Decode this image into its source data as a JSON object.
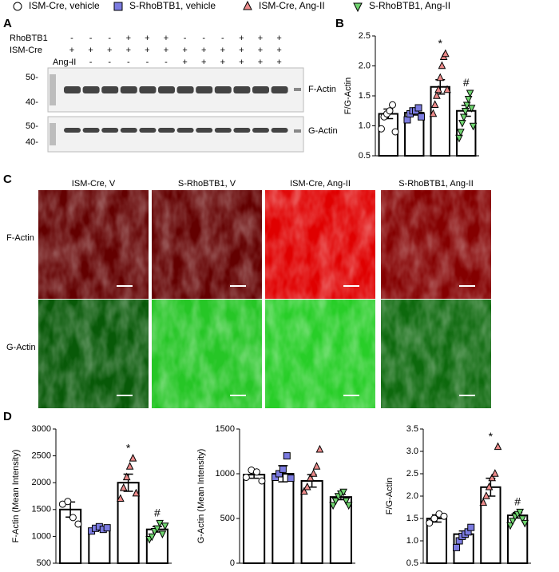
{
  "legend": [
    {
      "name": "ISM-Cre, vehicle",
      "color": "#ffffff",
      "marker": "circle"
    },
    {
      "name": "S-RhoBTB1, vehicle",
      "color": "#7b7be0",
      "marker": "square"
    },
    {
      "name": "ISM-Cre, Ang-II",
      "color": "#ec8a8a",
      "marker": "triangle-up"
    },
    {
      "name": "S-RhoBTB1, Ang-II",
      "color": "#6fd46f",
      "marker": "triangle-down"
    }
  ],
  "panels": [
    "A",
    "B",
    "C",
    "D"
  ],
  "blot": {
    "rows": [
      {
        "name": "RhoBTB1",
        "signs": [
          "-",
          "-",
          "-",
          "+",
          "+",
          "+",
          "-",
          "-",
          "-",
          "+",
          "+",
          "+"
        ]
      },
      {
        "name": "ISM-Cre",
        "signs": [
          "+",
          "+",
          "+",
          "+",
          "+",
          "+",
          "+",
          "+",
          "+",
          "+",
          "+",
          "+"
        ]
      },
      {
        "name": "Ang-II",
        "signs": [
          "-",
          "-",
          "-",
          "-",
          "-",
          "-",
          "+",
          "+",
          "+",
          "+",
          "+",
          "+"
        ]
      }
    ],
    "bands": [
      "F-Actin",
      "G-Actin"
    ],
    "markers": [
      "50-",
      "40-"
    ]
  },
  "images": {
    "columns": [
      "ISM-Cre, V",
      "S-RhoBTB1, V",
      "ISM-Cre, Ang-II",
      "S-RhoBTB1, Ang-II"
    ],
    "rows": [
      "F-Actin",
      "G-Actin"
    ]
  },
  "chart_data": [
    {
      "type": "bar",
      "ylabel": "F/G-Actin",
      "ylim": [
        0.5,
        2.5
      ],
      "yticks": [
        0.5,
        {
          "value": 1,
          "label": "1.0"
        },
        1.5,
        {
          "value": 2,
          "label": "2.0"
        },
        2.5
      ],
      "values": [
        1.2,
        1.22,
        1.65,
        1.25
      ],
      "errors": [
        0.08,
        0.04,
        0.12,
        0.09
      ],
      "annotations": [
        null,
        null,
        "*",
        "#"
      ],
      "points": [
        [
          0.95,
          1.15,
          1.2,
          1.25,
          1.35,
          0.9
        ],
        [
          1.1,
          1.2,
          1.25,
          1.25,
          1.3,
          1.15
        ],
        [
          1.2,
          1.35,
          1.5,
          1.6,
          1.8,
          2.0,
          2.15,
          2.2,
          1.6
        ],
        [
          0.8,
          0.9,
          1.05,
          1.15,
          1.25,
          1.35,
          1.45,
          1.55,
          1.3,
          1.0
        ]
      ]
    },
    {
      "type": "bar",
      "ylabel": "F-Actin (Mean Intensity)",
      "ylim": [
        500,
        3000
      ],
      "yticks": [
        500,
        1000,
        1500,
        2000,
        2500,
        3000
      ],
      "values": [
        1500,
        1140,
        2000,
        1130
      ],
      "errors": [
        140,
        30,
        160,
        50
      ],
      "annotations": [
        null,
        null,
        "*",
        "#"
      ],
      "points": [
        [
          1600,
          1650,
          1350,
          1230
        ],
        [
          1100,
          1150,
          1180,
          1130,
          1160
        ],
        [
          1700,
          1900,
          2100,
          2300,
          2450,
          1800
        ],
        [
          950,
          1000,
          1100,
          1150,
          1250,
          1050,
          1200
        ]
      ]
    },
    {
      "type": "bar",
      "ylabel": "G-Actin (Mean Intensity)",
      "ylim": [
        0,
        1500
      ],
      "yticks": [
        0,
        500,
        1000,
        1500
      ],
      "values": [
        990,
        1000,
        920,
        740
      ],
      "errors": [
        40,
        90,
        70,
        30
      ],
      "annotations": [
        null,
        null,
        null,
        null
      ],
      "points": [
        [
          960,
          1040,
          1020,
          920
        ],
        [
          960,
          1000,
          1050,
          1200,
          950
        ],
        [
          800,
          850,
          950,
          1000,
          1080,
          1270
        ],
        [
          650,
          700,
          750,
          780,
          800,
          700,
          650
        ]
      ]
    },
    {
      "type": "bar",
      "ylabel": "F/G-Actin",
      "ylim": [
        0.5,
        3.5
      ],
      "yticks": [
        0.5,
        {
          "value": 1,
          "label": "1.0"
        },
        1.5,
        {
          "value": 2,
          "label": "2.0"
        },
        2.5,
        {
          "value": 3,
          "label": "3.0"
        },
        3.5
      ],
      "values": [
        1.5,
        1.15,
        2.2,
        1.57
      ],
      "errors": [
        0.08,
        0.07,
        0.2,
        0.06
      ],
      "annotations": [
        null,
        null,
        "*",
        "#"
      ],
      "points": [
        [
          1.4,
          1.5,
          1.6,
          1.55
        ],
        [
          0.85,
          1.0,
          1.1,
          1.15,
          1.2,
          1.3
        ],
        [
          1.85,
          2.0,
          2.2,
          2.4,
          2.5,
          3.1
        ],
        [
          1.35,
          1.45,
          1.55,
          1.6,
          1.65,
          1.5,
          1.4
        ]
      ]
    }
  ]
}
